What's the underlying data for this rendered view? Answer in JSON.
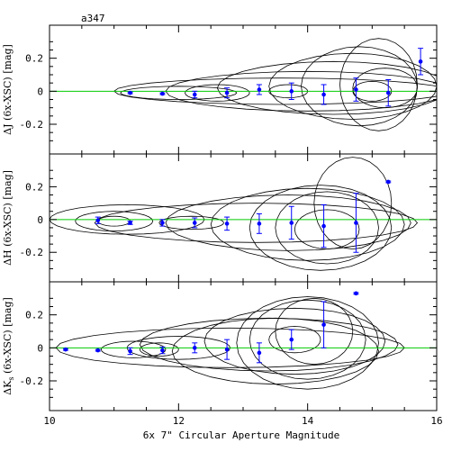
{
  "chart_data": {
    "type": "scatter",
    "title": "a347",
    "xlabel": "6x 7\" Circular Aperture Magnitude",
    "xlim": [
      10,
      16
    ],
    "x_ticks": [
      10,
      12,
      14,
      16
    ],
    "reference_line_y": 0,
    "colors": {
      "points": "#0000ff",
      "reference": "#00cc00",
      "contours": "#000000",
      "frame": "#000000"
    },
    "panels": [
      {
        "ylabel": "ΔJ (6x-XSC) [mag]",
        "ylim": [
          -0.38,
          0.4
        ],
        "y_ticks": [
          -0.2,
          0,
          0.2
        ],
        "y_tick_labels": [
          "-0.2",
          "0",
          "0.2"
        ],
        "points": [
          {
            "x": 11.25,
            "y": -0.01,
            "err": 0.005
          },
          {
            "x": 11.75,
            "y": -0.015,
            "err": 0.005
          },
          {
            "x": 12.25,
            "y": -0.02,
            "err": 0.02
          },
          {
            "x": 12.75,
            "y": -0.01,
            "err": 0.03
          },
          {
            "x": 13.25,
            "y": 0.01,
            "err": 0.03
          },
          {
            "x": 13.75,
            "y": 0.0,
            "err": 0.05
          },
          {
            "x": 14.25,
            "y": -0.02,
            "err": 0.06
          },
          {
            "x": 14.75,
            "y": 0.01,
            "err": 0.07
          },
          {
            "x": 15.25,
            "y": -0.01,
            "err": 0.08
          },
          {
            "x": 15.75,
            "y": 0.18,
            "err": 0.08
          }
        ]
      },
      {
        "ylabel": "ΔH (6x-XSC) [mag]",
        "ylim": [
          -0.38,
          0.4
        ],
        "y_ticks": [
          -0.2,
          0,
          0.2
        ],
        "y_tick_labels": [
          "-0.2",
          "0",
          "0.2"
        ],
        "points": [
          {
            "x": 10.75,
            "y": -0.005,
            "err": 0.02
          },
          {
            "x": 11.25,
            "y": -0.02,
            "err": 0.01
          },
          {
            "x": 11.75,
            "y": -0.02,
            "err": 0.02
          },
          {
            "x": 12.25,
            "y": -0.02,
            "err": 0.03
          },
          {
            "x": 12.75,
            "y": -0.025,
            "err": 0.04
          },
          {
            "x": 13.25,
            "y": -0.025,
            "err": 0.06
          },
          {
            "x": 13.75,
            "y": -0.02,
            "err": 0.1
          },
          {
            "x": 14.25,
            "y": -0.04,
            "err": 0.13
          },
          {
            "x": 14.75,
            "y": -0.02,
            "err": 0.18
          },
          {
            "x": 15.25,
            "y": 0.23,
            "err": 0.005
          }
        ]
      },
      {
        "ylabel": "ΔK",
        "ylabel_sub": "s",
        "ylabel_rest": " (6x-XSC) [mag]",
        "ylim": [
          -0.38,
          0.4
        ],
        "y_ticks": [
          -0.2,
          0,
          0.2
        ],
        "y_tick_labels": [
          "-0.2",
          "0",
          "0.2"
        ],
        "points": [
          {
            "x": 10.25,
            "y": -0.01,
            "err": 0.005
          },
          {
            "x": 10.75,
            "y": -0.015,
            "err": 0.005
          },
          {
            "x": 11.25,
            "y": -0.02,
            "err": 0.02
          },
          {
            "x": 11.75,
            "y": -0.015,
            "err": 0.02
          },
          {
            "x": 12.25,
            "y": 0.0,
            "err": 0.03
          },
          {
            "x": 12.75,
            "y": -0.01,
            "err": 0.06
          },
          {
            "x": 13.25,
            "y": -0.03,
            "err": 0.06
          },
          {
            "x": 13.75,
            "y": 0.05,
            "err": 0.06
          },
          {
            "x": 14.25,
            "y": 0.14,
            "err": 0.14
          },
          {
            "x": 14.75,
            "y": 0.33,
            "err": 0.005
          }
        ]
      }
    ]
  }
}
